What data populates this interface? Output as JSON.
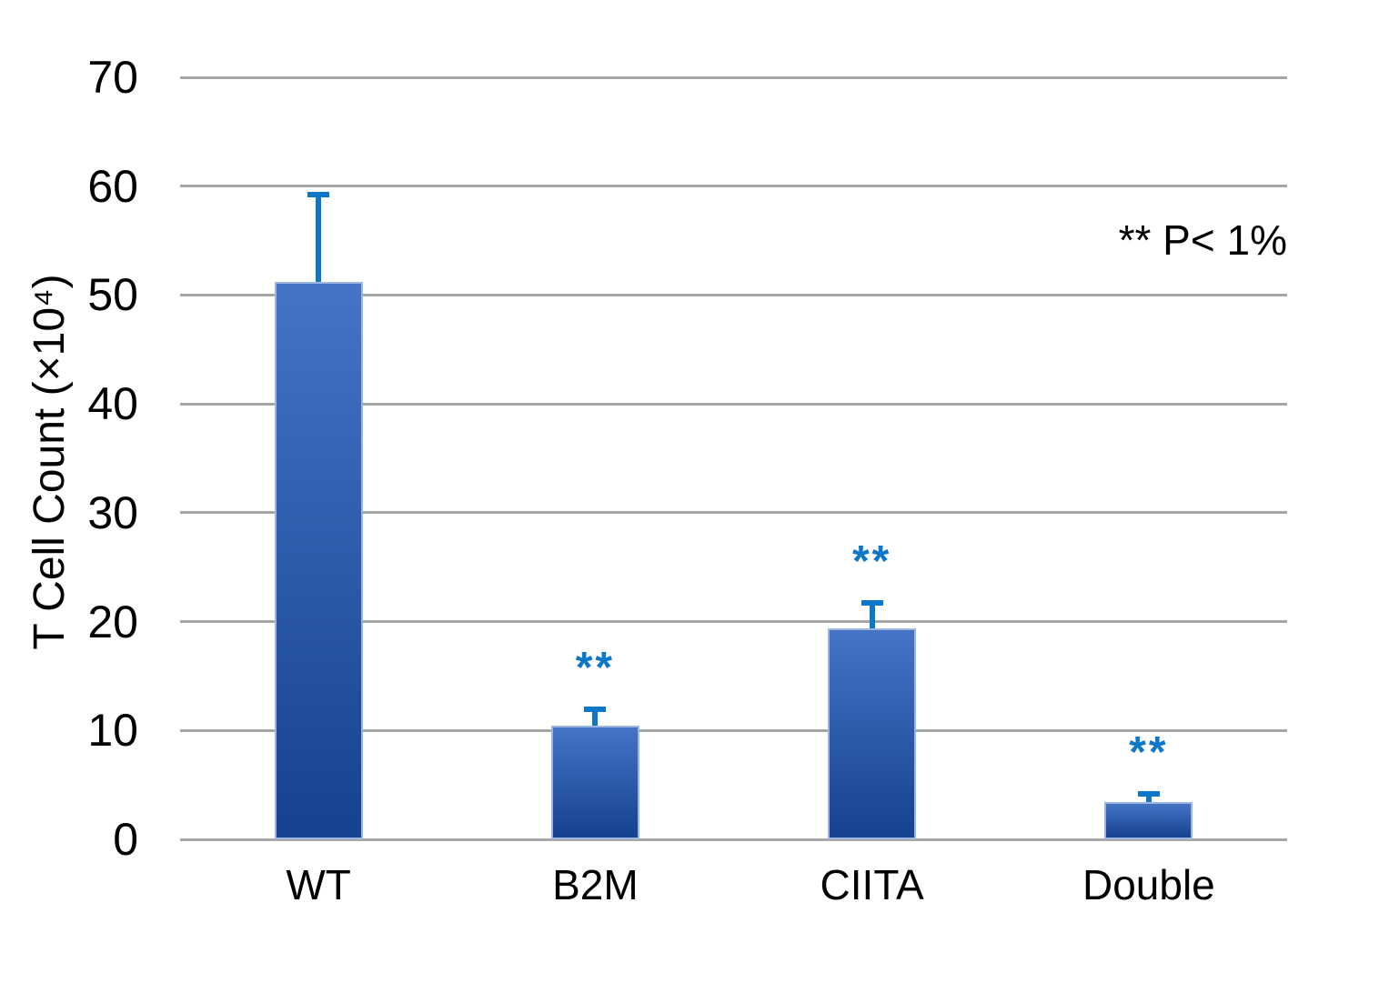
{
  "chart_data": {
    "type": "bar",
    "title": "",
    "xlabel": "",
    "ylabel": "T Cell Count (×10⁴)",
    "categories": [
      "WT",
      "B2M",
      "CIITA",
      "Double"
    ],
    "values": [
      51.2,
      10.4,
      19.4,
      3.4
    ],
    "error_plus": [
      8.3,
      1.8,
      2.6,
      1.0
    ],
    "significance": [
      "",
      "**",
      "**",
      "**"
    ],
    "annotation": "** P< 1%",
    "ylim": [
      0,
      70
    ],
    "yticks": [
      0,
      10,
      20,
      30,
      40,
      50,
      60,
      70
    ],
    "grid": true,
    "legend_position": "top-right",
    "colors": {
      "bar_gradient_top": "#4673C6",
      "bar_gradient_bottom": "#16418F",
      "bar_edge": "#9DB6E0",
      "error_bar": "#0E78C8",
      "significance": "#0E78C8",
      "gridline": "#A6A6A6",
      "text": "#000000",
      "background": "#FFFFFF"
    }
  }
}
